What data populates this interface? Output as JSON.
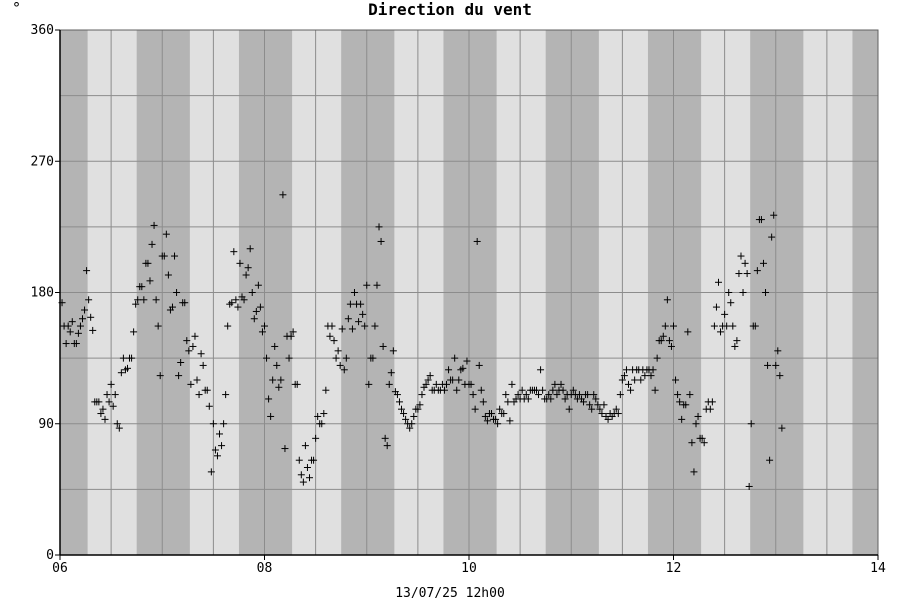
{
  "chart_data": {
    "type": "scatter",
    "title": "Direction du vent",
    "unit_label": "°",
    "footer": "13/07/25 12h00",
    "x_ticks": [
      "06",
      "08",
      "10",
      "12",
      "14"
    ],
    "y_ticks": [
      "0",
      "90",
      "180",
      "270",
      "360"
    ],
    "xlim": [
      6,
      14
    ],
    "ylim": [
      0,
      360
    ],
    "grid": true,
    "marker": "+",
    "night_bands": [
      [
        6.0,
        6.27
      ],
      [
        6.75,
        7.27
      ],
      [
        7.75,
        8.27
      ],
      [
        8.75,
        9.27
      ],
      [
        9.75,
        10.27
      ],
      [
        10.75,
        11.27
      ],
      [
        11.75,
        12.27
      ],
      [
        12.75,
        13.27
      ],
      [
        13.75,
        14.0
      ]
    ],
    "points": [
      [
        6.02,
        173
      ],
      [
        6.04,
        157
      ],
      [
        6.06,
        145
      ],
      [
        6.08,
        157
      ],
      [
        6.1,
        153
      ],
      [
        6.12,
        160
      ],
      [
        6.14,
        145
      ],
      [
        6.16,
        145
      ],
      [
        6.18,
        152
      ],
      [
        6.2,
        157
      ],
      [
        6.22,
        162
      ],
      [
        6.24,
        168
      ],
      [
        6.26,
        195
      ],
      [
        6.28,
        175
      ],
      [
        6.3,
        163
      ],
      [
        6.32,
        154
      ],
      [
        6.34,
        105
      ],
      [
        6.36,
        105
      ],
      [
        6.38,
        105
      ],
      [
        6.4,
        97
      ],
      [
        6.42,
        100
      ],
      [
        6.44,
        93
      ],
      [
        6.46,
        110
      ],
      [
        6.48,
        105
      ],
      [
        6.5,
        117
      ],
      [
        6.52,
        102
      ],
      [
        6.54,
        110
      ],
      [
        6.56,
        90
      ],
      [
        6.58,
        87
      ],
      [
        6.6,
        125
      ],
      [
        6.62,
        135
      ],
      [
        6.64,
        127
      ],
      [
        6.66,
        128
      ],
      [
        6.68,
        135
      ],
      [
        6.7,
        135
      ],
      [
        6.72,
        153
      ],
      [
        6.74,
        172
      ],
      [
        6.76,
        175
      ],
      [
        6.78,
        184
      ],
      [
        6.8,
        184
      ],
      [
        6.82,
        175
      ],
      [
        6.84,
        200
      ],
      [
        6.86,
        200
      ],
      [
        6.88,
        188
      ],
      [
        6.9,
        213
      ],
      [
        6.92,
        226
      ],
      [
        6.94,
        175
      ],
      [
        6.96,
        157
      ],
      [
        6.98,
        123
      ],
      [
        7.0,
        205
      ],
      [
        7.02,
        205
      ],
      [
        7.04,
        220
      ],
      [
        7.06,
        192
      ],
      [
        7.08,
        168
      ],
      [
        7.1,
        170
      ],
      [
        7.12,
        205
      ],
      [
        7.14,
        180
      ],
      [
        7.16,
        123
      ],
      [
        7.18,
        132
      ],
      [
        7.2,
        173
      ],
      [
        7.22,
        173
      ],
      [
        7.24,
        147
      ],
      [
        7.26,
        140
      ],
      [
        7.28,
        117
      ],
      [
        7.3,
        143
      ],
      [
        7.32,
        150
      ],
      [
        7.34,
        120
      ],
      [
        7.36,
        110
      ],
      [
        7.38,
        138
      ],
      [
        7.4,
        130
      ],
      [
        7.42,
        113
      ],
      [
        7.44,
        113
      ],
      [
        7.46,
        102
      ],
      [
        7.48,
        57
      ],
      [
        7.5,
        90
      ],
      [
        7.52,
        72
      ],
      [
        7.54,
        68
      ],
      [
        7.56,
        83
      ],
      [
        7.58,
        75
      ],
      [
        7.6,
        90
      ],
      [
        7.62,
        110
      ],
      [
        7.64,
        157
      ],
      [
        7.66,
        172
      ],
      [
        7.68,
        173
      ],
      [
        7.7,
        208
      ],
      [
        7.72,
        175
      ],
      [
        7.74,
        170
      ],
      [
        7.76,
        200
      ],
      [
        7.78,
        177
      ],
      [
        7.8,
        175
      ],
      [
        7.82,
        192
      ],
      [
        7.84,
        197
      ],
      [
        7.86,
        210
      ],
      [
        7.88,
        180
      ],
      [
        7.9,
        162
      ],
      [
        7.92,
        167
      ],
      [
        7.94,
        185
      ],
      [
        7.96,
        170
      ],
      [
        7.98,
        153
      ],
      [
        8.0,
        157
      ],
      [
        8.02,
        135
      ],
      [
        8.04,
        107
      ],
      [
        8.06,
        95
      ],
      [
        8.08,
        120
      ],
      [
        8.1,
        143
      ],
      [
        8.12,
        130
      ],
      [
        8.14,
        115
      ],
      [
        8.16,
        120
      ],
      [
        8.18,
        247
      ],
      [
        8.2,
        73
      ],
      [
        8.22,
        150
      ],
      [
        8.24,
        135
      ],
      [
        8.26,
        150
      ],
      [
        8.28,
        153
      ],
      [
        8.3,
        117
      ],
      [
        8.32,
        117
      ],
      [
        8.34,
        65
      ],
      [
        8.36,
        55
      ],
      [
        8.38,
        50
      ],
      [
        8.4,
        75
      ],
      [
        8.42,
        60
      ],
      [
        8.44,
        53
      ],
      [
        8.46,
        65
      ],
      [
        8.48,
        65
      ],
      [
        8.5,
        80
      ],
      [
        8.52,
        95
      ],
      [
        8.54,
        90
      ],
      [
        8.56,
        90
      ],
      [
        8.58,
        97
      ],
      [
        8.6,
        113
      ],
      [
        8.62,
        157
      ],
      [
        8.64,
        150
      ],
      [
        8.66,
        157
      ],
      [
        8.68,
        147
      ],
      [
        8.7,
        135
      ],
      [
        8.72,
        140
      ],
      [
        8.74,
        130
      ],
      [
        8.76,
        155
      ],
      [
        8.78,
        127
      ],
      [
        8.8,
        135
      ],
      [
        8.82,
        162
      ],
      [
        8.84,
        172
      ],
      [
        8.86,
        155
      ],
      [
        8.88,
        180
      ],
      [
        8.9,
        172
      ],
      [
        8.92,
        160
      ],
      [
        8.94,
        172
      ],
      [
        8.96,
        165
      ],
      [
        8.98,
        157
      ],
      [
        9.0,
        185
      ],
      [
        9.02,
        117
      ],
      [
        9.04,
        135
      ],
      [
        9.06,
        135
      ],
      [
        9.08,
        157
      ],
      [
        9.1,
        185
      ],
      [
        9.12,
        225
      ],
      [
        9.14,
        215
      ],
      [
        9.16,
        143
      ],
      [
        9.18,
        80
      ],
      [
        9.2,
        75
      ],
      [
        9.22,
        117
      ],
      [
        9.24,
        125
      ],
      [
        9.26,
        140
      ],
      [
        9.28,
        112
      ],
      [
        9.3,
        110
      ],
      [
        9.32,
        105
      ],
      [
        9.34,
        100
      ],
      [
        9.36,
        97
      ],
      [
        9.38,
        93
      ],
      [
        9.4,
        90
      ],
      [
        9.42,
        87
      ],
      [
        9.44,
        90
      ],
      [
        9.46,
        95
      ],
      [
        9.48,
        100
      ],
      [
        9.5,
        100
      ],
      [
        9.52,
        103
      ],
      [
        9.54,
        110
      ],
      [
        9.56,
        115
      ],
      [
        9.58,
        117
      ],
      [
        9.6,
        120
      ],
      [
        9.62,
        123
      ],
      [
        9.64,
        113
      ],
      [
        9.66,
        113
      ],
      [
        9.68,
        117
      ],
      [
        9.7,
        113
      ],
      [
        9.72,
        113
      ],
      [
        9.74,
        117
      ],
      [
        9.76,
        113
      ],
      [
        9.78,
        117
      ],
      [
        9.8,
        127
      ],
      [
        9.82,
        120
      ],
      [
        9.84,
        120
      ],
      [
        9.86,
        135
      ],
      [
        9.88,
        113
      ],
      [
        9.9,
        120
      ],
      [
        9.92,
        127
      ],
      [
        9.94,
        128
      ],
      [
        9.96,
        117
      ],
      [
        9.98,
        133
      ],
      [
        10.0,
        117
      ],
      [
        10.02,
        117
      ],
      [
        10.04,
        110
      ],
      [
        10.06,
        100
      ],
      [
        10.08,
        215
      ],
      [
        10.1,
        130
      ],
      [
        10.12,
        113
      ],
      [
        10.14,
        105
      ],
      [
        10.16,
        95
      ],
      [
        10.18,
        92
      ],
      [
        10.2,
        97
      ],
      [
        10.22,
        97
      ],
      [
        10.24,
        93
      ],
      [
        10.26,
        93
      ],
      [
        10.28,
        90
      ],
      [
        10.3,
        100
      ],
      [
        10.32,
        97
      ],
      [
        10.34,
        97
      ],
      [
        10.36,
        110
      ],
      [
        10.38,
        105
      ],
      [
        10.4,
        92
      ],
      [
        10.42,
        117
      ],
      [
        10.44,
        105
      ],
      [
        10.46,
        107
      ],
      [
        10.48,
        110
      ],
      [
        10.5,
        107
      ],
      [
        10.52,
        113
      ],
      [
        10.54,
        107
      ],
      [
        10.56,
        110
      ],
      [
        10.58,
        107
      ],
      [
        10.6,
        113
      ],
      [
        10.62,
        113
      ],
      [
        10.64,
        113
      ],
      [
        10.66,
        113
      ],
      [
        10.68,
        110
      ],
      [
        10.7,
        127
      ],
      [
        10.72,
        113
      ],
      [
        10.74,
        107
      ],
      [
        10.76,
        107
      ],
      [
        10.78,
        110
      ],
      [
        10.8,
        107
      ],
      [
        10.82,
        113
      ],
      [
        10.84,
        117
      ],
      [
        10.86,
        110
      ],
      [
        10.88,
        113
      ],
      [
        10.9,
        117
      ],
      [
        10.92,
        113
      ],
      [
        10.94,
        107
      ],
      [
        10.96,
        110
      ],
      [
        10.98,
        100
      ],
      [
        11.0,
        110
      ],
      [
        11.02,
        113
      ],
      [
        11.04,
        110
      ],
      [
        11.06,
        107
      ],
      [
        11.08,
        110
      ],
      [
        11.1,
        107
      ],
      [
        11.12,
        105
      ],
      [
        11.14,
        110
      ],
      [
        11.16,
        110
      ],
      [
        11.18,
        103
      ],
      [
        11.2,
        100
      ],
      [
        11.22,
        110
      ],
      [
        11.24,
        107
      ],
      [
        11.26,
        103
      ],
      [
        11.28,
        100
      ],
      [
        11.3,
        97
      ],
      [
        11.32,
        103
      ],
      [
        11.34,
        95
      ],
      [
        11.36,
        93
      ],
      [
        11.38,
        97
      ],
      [
        11.4,
        95
      ],
      [
        11.42,
        97
      ],
      [
        11.44,
        100
      ],
      [
        11.46,
        97
      ],
      [
        11.48,
        110
      ],
      [
        11.5,
        120
      ],
      [
        11.52,
        123
      ],
      [
        11.54,
        127
      ],
      [
        11.56,
        117
      ],
      [
        11.58,
        113
      ],
      [
        11.6,
        127
      ],
      [
        11.62,
        120
      ],
      [
        11.64,
        127
      ],
      [
        11.66,
        127
      ],
      [
        11.68,
        120
      ],
      [
        11.7,
        127
      ],
      [
        11.72,
        123
      ],
      [
        11.74,
        127
      ],
      [
        11.76,
        127
      ],
      [
        11.78,
        123
      ],
      [
        11.8,
        127
      ],
      [
        11.82,
        113
      ],
      [
        11.84,
        135
      ],
      [
        11.86,
        147
      ],
      [
        11.88,
        147
      ],
      [
        11.9,
        150
      ],
      [
        11.92,
        157
      ],
      [
        11.94,
        175
      ],
      [
        11.96,
        147
      ],
      [
        11.98,
        143
      ],
      [
        12.0,
        157
      ],
      [
        12.02,
        120
      ],
      [
        12.04,
        110
      ],
      [
        12.06,
        105
      ],
      [
        12.08,
        93
      ],
      [
        12.1,
        103
      ],
      [
        12.12,
        103
      ],
      [
        12.14,
        153
      ],
      [
        12.16,
        110
      ],
      [
        12.18,
        77
      ],
      [
        12.2,
        57
      ],
      [
        12.22,
        90
      ],
      [
        12.24,
        95
      ],
      [
        12.26,
        80
      ],
      [
        12.28,
        80
      ],
      [
        12.3,
        77
      ],
      [
        12.32,
        100
      ],
      [
        12.34,
        105
      ],
      [
        12.36,
        100
      ],
      [
        12.38,
        105
      ],
      [
        12.4,
        157
      ],
      [
        12.42,
        170
      ],
      [
        12.44,
        187
      ],
      [
        12.46,
        153
      ],
      [
        12.48,
        157
      ],
      [
        12.5,
        165
      ],
      [
        12.52,
        157
      ],
      [
        12.54,
        180
      ],
      [
        12.56,
        173
      ],
      [
        12.58,
        157
      ],
      [
        12.6,
        143
      ],
      [
        12.62,
        147
      ],
      [
        12.64,
        193
      ],
      [
        12.66,
        205
      ],
      [
        12.68,
        180
      ],
      [
        12.7,
        200
      ],
      [
        12.72,
        193
      ],
      [
        12.74,
        47
      ],
      [
        12.76,
        90
      ],
      [
        12.78,
        157
      ],
      [
        12.8,
        157
      ],
      [
        12.82,
        195
      ],
      [
        12.84,
        230
      ],
      [
        12.86,
        230
      ],
      [
        12.88,
        200
      ],
      [
        12.9,
        180
      ],
      [
        12.92,
        130
      ],
      [
        12.94,
        65
      ],
      [
        12.96,
        218
      ],
      [
        12.98,
        233
      ],
      [
        13.0,
        130
      ],
      [
        13.02,
        140
      ],
      [
        13.04,
        123
      ],
      [
        13.06,
        87
      ]
    ]
  }
}
